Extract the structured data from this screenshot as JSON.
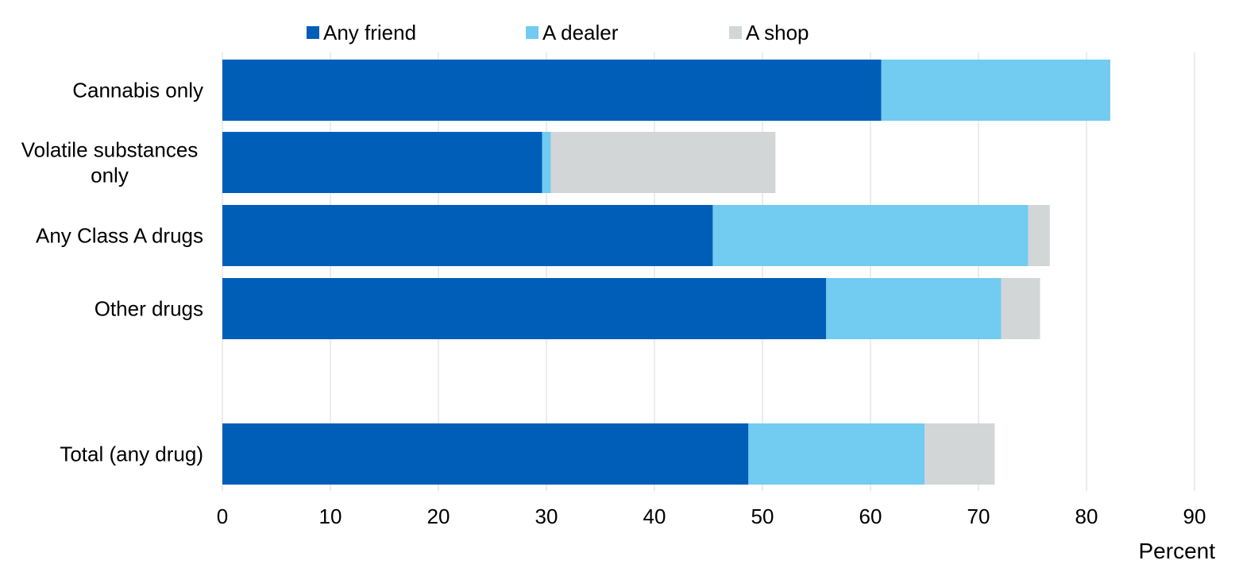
{
  "chart_data": {
    "type": "bar",
    "orientation": "horizontal",
    "stacked": true,
    "categories": [
      "Cannabis only",
      "Volatile substances only",
      "Any Class A drugs",
      "Other drugs",
      "Total (any drug)"
    ],
    "category_lines": [
      [
        "Cannabis only"
      ],
      [
        "Volatile substances",
        "only"
      ],
      [
        "Any Class A drugs"
      ],
      [
        "Other drugs"
      ],
      [
        "Total (any drug)"
      ]
    ],
    "series": [
      {
        "name": "Any friend",
        "color": "#005eb8",
        "values": [
          61.0,
          29.6,
          45.4,
          55.9,
          48.7
        ]
      },
      {
        "name": "A dealer",
        "color": "#72cbf0",
        "values": [
          21.2,
          0.8,
          29.2,
          16.2,
          16.3
        ]
      },
      {
        "name": "A shop",
        "color": "#d2d6d6",
        "values": [
          0,
          20.8,
          2.0,
          3.6,
          6.5
        ]
      }
    ],
    "xlim": [
      0,
      90
    ],
    "xticks": [
      "0",
      "10",
      "20",
      "30",
      "40",
      "50",
      "60",
      "70",
      "80",
      "90"
    ],
    "xlabel": "Percent",
    "title": "",
    "grid": true,
    "legend_position": "top"
  }
}
